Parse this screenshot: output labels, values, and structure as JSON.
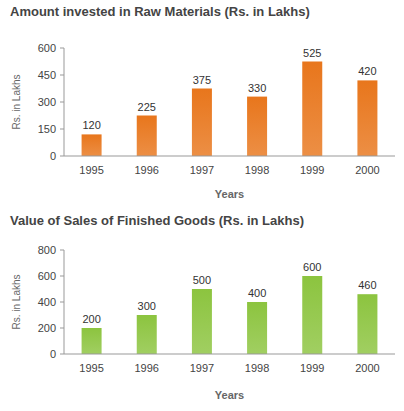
{
  "chart_data": [
    {
      "type": "bar",
      "title": "Amount invested in Raw Materials (Rs. in Lakhs)",
      "x_label": "Years",
      "y_label": "Rs. in Lakhs",
      "categories": [
        "1995",
        "1996",
        "1997",
        "1998",
        "1999",
        "2000"
      ],
      "values": [
        120,
        225,
        375,
        330,
        525,
        420
      ],
      "color": "#e8761c",
      "ylim": [
        0,
        600
      ],
      "yticks": [
        0,
        150,
        300,
        450,
        600
      ],
      "grid": false,
      "data_labels": true
    },
    {
      "type": "bar",
      "title": "Value of Sales of Finished Goods (Rs. in Lakhs)",
      "x_label": "Years",
      "y_label": "Rs. in Lakhs",
      "categories": [
        "1995",
        "1996",
        "1997",
        "1998",
        "1999",
        "2000"
      ],
      "values": [
        200,
        300,
        500,
        400,
        600,
        460
      ],
      "color": "#8cc43f",
      "ylim": [
        0,
        800
      ],
      "yticks": [
        0,
        200,
        400,
        600,
        800
      ],
      "grid": false,
      "data_labels": true
    }
  ]
}
